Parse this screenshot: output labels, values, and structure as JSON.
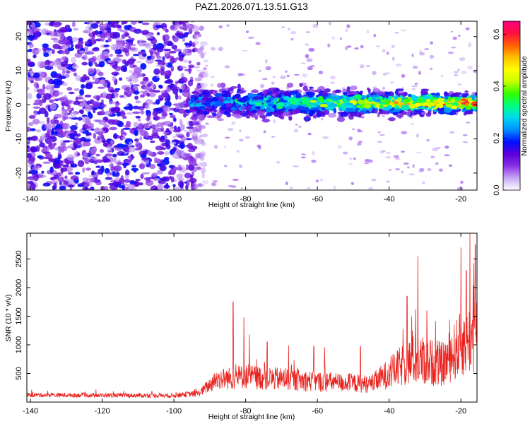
{
  "title": "PAZ1.2026.071.13.51.G13",
  "colors": {
    "snr_line": "#e8221e",
    "axis": "#000000",
    "background": "#ffffff"
  },
  "chart_data": [
    {
      "type": "heatmap",
      "name": "spectrogram",
      "xlabel": "Height of straight line (km)",
      "ylabel": "Frequency (Hz)",
      "xlim": [
        -141,
        -15.5
      ],
      "ylim": [
        -25,
        24.5
      ],
      "x_ticks": [
        -140,
        -120,
        -100,
        -80,
        -60,
        -40,
        -20
      ],
      "x_tick_labels": [
        "-140",
        "-120",
        "-100",
        "-80",
        "-60",
        "-40",
        "-20"
      ],
      "y_ticks": [
        -20,
        -10,
        0,
        10,
        20
      ],
      "y_tick_labels": [
        "-20",
        "-10",
        "0",
        "10",
        "20"
      ],
      "description_regions": [
        {
          "x_range": [
            -141,
            -93
          ],
          "y_range": [
            -25,
            24.5
          ],
          "level": "noise",
          "amplitude": 0.15
        },
        {
          "x_range": [
            -95,
            -15.5
          ],
          "y_center": 0.5,
          "y_halfwidth": 4,
          "level": "signal_band",
          "amplitude_max": 0.62
        }
      ],
      "colorbar": {
        "label": "Normalized spectral amplitude",
        "range": [
          0.0,
          0.65
        ],
        "ticks": [
          0.0,
          0.2,
          0.4,
          0.6
        ],
        "tick_labels": [
          "0.0",
          "0.2",
          "0.4",
          "0.6"
        ],
        "colormap": [
          "#ffffff",
          "#c8a8f4",
          "#8a30e6",
          "#5a00d8",
          "#0010ff",
          "#0090ff",
          "#00d8f0",
          "#00ff80",
          "#30ff00",
          "#c8ff00",
          "#ffff00",
          "#ffc000",
          "#ff6000",
          "#ff1040",
          "#ff0080"
        ]
      }
    },
    {
      "type": "line",
      "name": "snr",
      "xlabel": "Height of straight line (km)",
      "ylabel": "SNR (10 * v/v)",
      "xlim": [
        -141,
        -15.5
      ],
      "ylim": [
        0,
        2950
      ],
      "x_ticks": [
        -140,
        -120,
        -100,
        -80,
        -60,
        -40,
        -20
      ],
      "x_tick_labels": [
        "-140",
        "-120",
        "-100",
        "-80",
        "-60",
        "-40",
        "-20"
      ],
      "y_ticks": [
        500,
        1000,
        1500,
        2000,
        2500
      ],
      "y_tick_labels": [
        "500",
        "1000",
        "1500",
        "2000",
        "2500"
      ],
      "envelope": [
        {
          "x": -141,
          "base": 120,
          "spread": 60
        },
        {
          "x": -100,
          "base": 110,
          "spread": 60
        },
        {
          "x": -93,
          "base": 150,
          "spread": 90
        },
        {
          "x": -88,
          "base": 380,
          "spread": 280
        },
        {
          "x": -80,
          "base": 420,
          "spread": 340
        },
        {
          "x": -60,
          "base": 340,
          "spread": 280
        },
        {
          "x": -45,
          "base": 300,
          "spread": 240
        },
        {
          "x": -40,
          "base": 480,
          "spread": 420
        },
        {
          "x": -33,
          "base": 700,
          "spread": 700
        },
        {
          "x": -25,
          "base": 620,
          "spread": 600
        },
        {
          "x": -20,
          "base": 950,
          "spread": 900
        },
        {
          "x": -15.5,
          "base": 1100,
          "spread": 1000
        }
      ],
      "peaks": [
        {
          "x": -83.5,
          "y": 1750
        },
        {
          "x": -80.5,
          "y": 1480
        },
        {
          "x": -79,
          "y": 1180
        },
        {
          "x": -74,
          "y": 1050
        },
        {
          "x": -68,
          "y": 990
        },
        {
          "x": -61,
          "y": 980
        },
        {
          "x": -58,
          "y": 960
        },
        {
          "x": -48,
          "y": 970
        },
        {
          "x": -35,
          "y": 1850
        },
        {
          "x": -33.5,
          "y": 1250
        },
        {
          "x": -32,
          "y": 2550
        },
        {
          "x": -29.5,
          "y": 1600
        },
        {
          "x": -20,
          "y": 2700
        },
        {
          "x": -18.5,
          "y": 2300
        },
        {
          "x": -17.5,
          "y": 2950
        },
        {
          "x": -16,
          "y": 2750
        }
      ]
    }
  ]
}
